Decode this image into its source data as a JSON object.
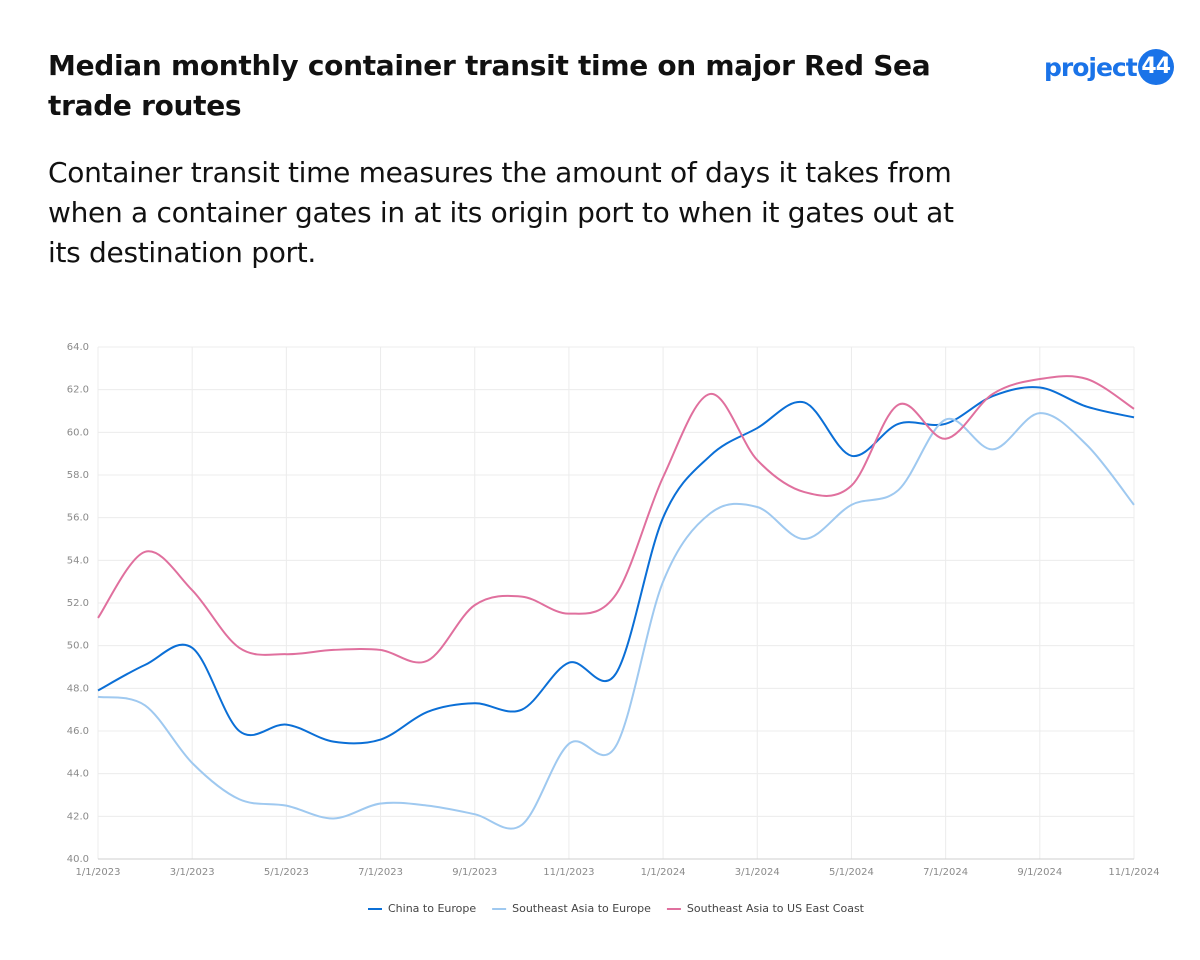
{
  "logo": {
    "text": "project",
    "badge": "44"
  },
  "chart_data": {
    "type": "line",
    "title": "Median monthly container transit time on major Red Sea trade routes",
    "subtitle": "Container transit time measures the amount of days it takes from when a container gates in at its origin port to when it gates out at its destination port.",
    "categories": [
      "1/1/2023",
      null,
      "3/1/2023",
      null,
      "5/1/2023",
      null,
      "7/1/2023",
      null,
      "9/1/2023",
      null,
      "11/1/2023",
      null,
      "1/1/2024",
      null,
      "3/1/2024",
      null,
      "5/1/2024",
      null,
      "7/1/2024",
      null,
      "9/1/2024",
      null,
      "11/1/2024"
    ],
    "series": [
      {
        "name": "China to Europe",
        "color": "#0b6fd6",
        "values": [
          47.9,
          49.1,
          49.9,
          46.0,
          46.3,
          45.5,
          45.6,
          46.9,
          47.3,
          47.0,
          49.2,
          48.7,
          56.0,
          58.9,
          60.2,
          61.4,
          58.9,
          60.4,
          60.4,
          61.7,
          62.1,
          61.2,
          60.7
        ]
      },
      {
        "name": "Southeast Asia to Europe",
        "color": "#9fc9f0",
        "values": [
          47.6,
          47.2,
          44.5,
          42.8,
          42.5,
          41.9,
          42.6,
          42.5,
          42.1,
          41.6,
          45.4,
          45.3,
          53.0,
          56.2,
          56.5,
          55.0,
          56.6,
          57.3,
          60.6,
          59.2,
          60.9,
          59.4,
          56.6
        ]
      },
      {
        "name": "Southeast Asia to US East Coast",
        "color": "#e0709e",
        "values": [
          51.3,
          54.4,
          52.6,
          49.9,
          49.6,
          49.8,
          49.8,
          49.3,
          51.9,
          52.3,
          51.5,
          52.4,
          57.9,
          61.8,
          58.7,
          57.2,
          57.5,
          61.3,
          59.7,
          61.8,
          62.5,
          62.5,
          61.1
        ]
      }
    ],
    "ylim": [
      40,
      64
    ],
    "yticks": [
      {
        "value": 40,
        "label": "40.0"
      },
      {
        "value": 42,
        "label": "42.0"
      },
      {
        "value": 44,
        "label": "44.0"
      },
      {
        "value": 46,
        "label": "46.0"
      },
      {
        "value": 48,
        "label": "48.0"
      },
      {
        "value": 50,
        "label": "50.0"
      },
      {
        "value": 52,
        "label": "52.0"
      },
      {
        "value": 54,
        "label": "54.0"
      },
      {
        "value": 56,
        "label": "56.0"
      },
      {
        "value": 58,
        "label": "58.0"
      },
      {
        "value": 60,
        "label": "60.0"
      },
      {
        "value": 62,
        "label": "62.0"
      },
      {
        "value": 64,
        "label": "64.0"
      }
    ],
    "grid": true,
    "legend": "bottom"
  }
}
